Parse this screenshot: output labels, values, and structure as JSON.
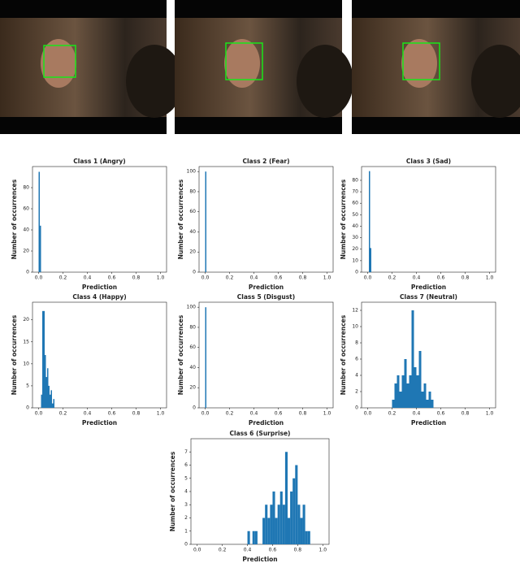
{
  "chart_data": [
    {
      "type": "histogram",
      "title": "Class 1 (Angry)",
      "x_label": "Prediction",
      "y_label": "Number of occurrences",
      "color": "#1f77b4",
      "bins": [
        0.0,
        0.01,
        0.02
      ],
      "values": [
        95,
        44
      ],
      "xlim": [
        -0.05,
        1.05
      ],
      "ylim": [
        0,
        100
      ],
      "xticks": [
        {
          "value": 0,
          "label": "0.0"
        },
        {
          "value": 0.2,
          "label": "0.2"
        },
        {
          "value": 0.4,
          "label": "0.4"
        },
        {
          "value": 0.6,
          "label": "0.6"
        },
        {
          "value": 0.8,
          "label": "0.8"
        },
        {
          "value": 1,
          "label": "1.0"
        }
      ],
      "yticks": [
        0,
        20,
        40,
        60,
        80
      ]
    },
    {
      "type": "histogram",
      "title": "Class 2 (Fear)",
      "x_label": "Prediction",
      "y_label": "Number of occurrences",
      "color": "#1f77b4",
      "bins": [
        0.0,
        0.01
      ],
      "values": [
        100
      ],
      "xlim": [
        -0.05,
        1.05
      ],
      "ylim": [
        0,
        105
      ],
      "xticks": [
        {
          "value": 0,
          "label": "0.0"
        },
        {
          "value": 0.2,
          "label": "0.2"
        },
        {
          "value": 0.4,
          "label": "0.4"
        },
        {
          "value": 0.6,
          "label": "0.6"
        },
        {
          "value": 0.8,
          "label": "0.8"
        },
        {
          "value": 1,
          "label": "1.0"
        }
      ],
      "yticks": [
        0,
        20,
        40,
        60,
        80,
        100
      ]
    },
    {
      "type": "histogram",
      "title": "Class 3 (Sad)",
      "x_label": "Prediction",
      "y_label": "Number of occurrences",
      "color": "#1f77b4",
      "bins": [
        0.01,
        0.02,
        0.03
      ],
      "values": [
        88,
        21
      ],
      "xlim": [
        -0.05,
        1.05
      ],
      "ylim": [
        0,
        92
      ],
      "xticks": [
        {
          "value": 0,
          "label": "0.0"
        },
        {
          "value": 0.2,
          "label": "0.2"
        },
        {
          "value": 0.4,
          "label": "0.4"
        },
        {
          "value": 0.6,
          "label": "0.6"
        },
        {
          "value": 0.8,
          "label": "0.8"
        },
        {
          "value": 1,
          "label": "1.0"
        }
      ],
      "yticks": [
        0,
        10,
        20,
        30,
        40,
        50,
        60,
        70,
        80
      ]
    },
    {
      "type": "histogram",
      "title": "Class 4 (Happy)",
      "x_label": "Prediction",
      "y_label": "Number of occurrences",
      "color": "#1f77b4",
      "bins": [
        0.02,
        0.03,
        0.04,
        0.05,
        0.06,
        0.07,
        0.08,
        0.09,
        0.1,
        0.11,
        0.12,
        0.13
      ],
      "values": [
        3,
        22,
        22,
        12,
        7,
        9,
        5,
        3,
        4,
        1,
        2
      ],
      "xlim": [
        -0.05,
        1.05
      ],
      "ylim": [
        0,
        24
      ],
      "xticks": [
        {
          "value": 0,
          "label": "0.0"
        },
        {
          "value": 0.2,
          "label": "0.2"
        },
        {
          "value": 0.4,
          "label": "0.4"
        },
        {
          "value": 0.6,
          "label": "0.6"
        },
        {
          "value": 0.8,
          "label": "0.8"
        },
        {
          "value": 1,
          "label": "1.0"
        }
      ],
      "yticks": [
        0,
        5,
        10,
        15,
        20
      ]
    },
    {
      "type": "histogram",
      "title": "Class 5 (Disgust)",
      "x_label": "Prediction",
      "y_label": "Number of occurrences",
      "color": "#1f77b4",
      "bins": [
        0.0,
        0.01
      ],
      "values": [
        100
      ],
      "xlim": [
        -0.05,
        1.05
      ],
      "ylim": [
        0,
        105
      ],
      "xticks": [
        {
          "value": 0,
          "label": "0.0"
        },
        {
          "value": 0.2,
          "label": "0.2"
        },
        {
          "value": 0.4,
          "label": "0.4"
        },
        {
          "value": 0.6,
          "label": "0.6"
        },
        {
          "value": 0.8,
          "label": "0.8"
        },
        {
          "value": 1,
          "label": "1.0"
        }
      ],
      "yticks": [
        0,
        20,
        40,
        60,
        80,
        100
      ]
    },
    {
      "type": "histogram",
      "title": "Class 7 (Neutral)",
      "x_label": "Prediction",
      "y_label": "Number of occurrences",
      "color": "#1f77b4",
      "bins": [
        0.2,
        0.22,
        0.24,
        0.26,
        0.28,
        0.3,
        0.32,
        0.34,
        0.36,
        0.38,
        0.4,
        0.42,
        0.44,
        0.46,
        0.48,
        0.5,
        0.52,
        0.54
      ],
      "values": [
        1,
        3,
        4,
        2,
        4,
        6,
        3,
        4,
        12,
        5,
        4,
        7,
        2,
        3,
        1,
        2,
        1
      ],
      "xlim": [
        -0.05,
        1.05
      ],
      "ylim": [
        0,
        13
      ],
      "xticks": [
        {
          "value": 0,
          "label": "0.0"
        },
        {
          "value": 0.2,
          "label": "0.2"
        },
        {
          "value": 0.4,
          "label": "0.4"
        },
        {
          "value": 0.6,
          "label": "0.6"
        },
        {
          "value": 0.8,
          "label": "0.8"
        },
        {
          "value": 1,
          "label": "1.0"
        }
      ],
      "yticks": [
        0,
        2,
        4,
        6,
        8,
        10,
        12
      ]
    },
    {
      "type": "histogram",
      "title": "Class 6 (Surprise)",
      "x_label": "Prediction",
      "y_label": "Number of occurrences",
      "color": "#1f77b4",
      "bins": [
        0.4,
        0.42,
        0.44,
        0.46,
        0.48,
        0.5,
        0.52,
        0.54,
        0.56,
        0.58,
        0.6,
        0.62,
        0.64,
        0.66,
        0.68,
        0.7,
        0.72,
        0.74,
        0.76,
        0.78,
        0.8,
        0.82,
        0.84,
        0.86,
        0.88,
        0.9
      ],
      "values": [
        1,
        0,
        1,
        1,
        0,
        0,
        2,
        3,
        2,
        3,
        4,
        2,
        3,
        4,
        3,
        7,
        2,
        4,
        5,
        6,
        3,
        2,
        3,
        1,
        1
      ],
      "xlim": [
        -0.05,
        1.05
      ],
      "ylim": [
        0,
        8
      ],
      "xticks": [
        {
          "value": 0,
          "label": "0.0"
        },
        {
          "value": 0.2,
          "label": "0.2"
        },
        {
          "value": 0.4,
          "label": "0.4"
        },
        {
          "value": 0.6,
          "label": "0.6"
        },
        {
          "value": 0.8,
          "label": "0.8"
        },
        {
          "value": 1,
          "label": "1.0"
        }
      ],
      "yticks": [
        0,
        1,
        2,
        3,
        4,
        5,
        6,
        7
      ]
    }
  ]
}
